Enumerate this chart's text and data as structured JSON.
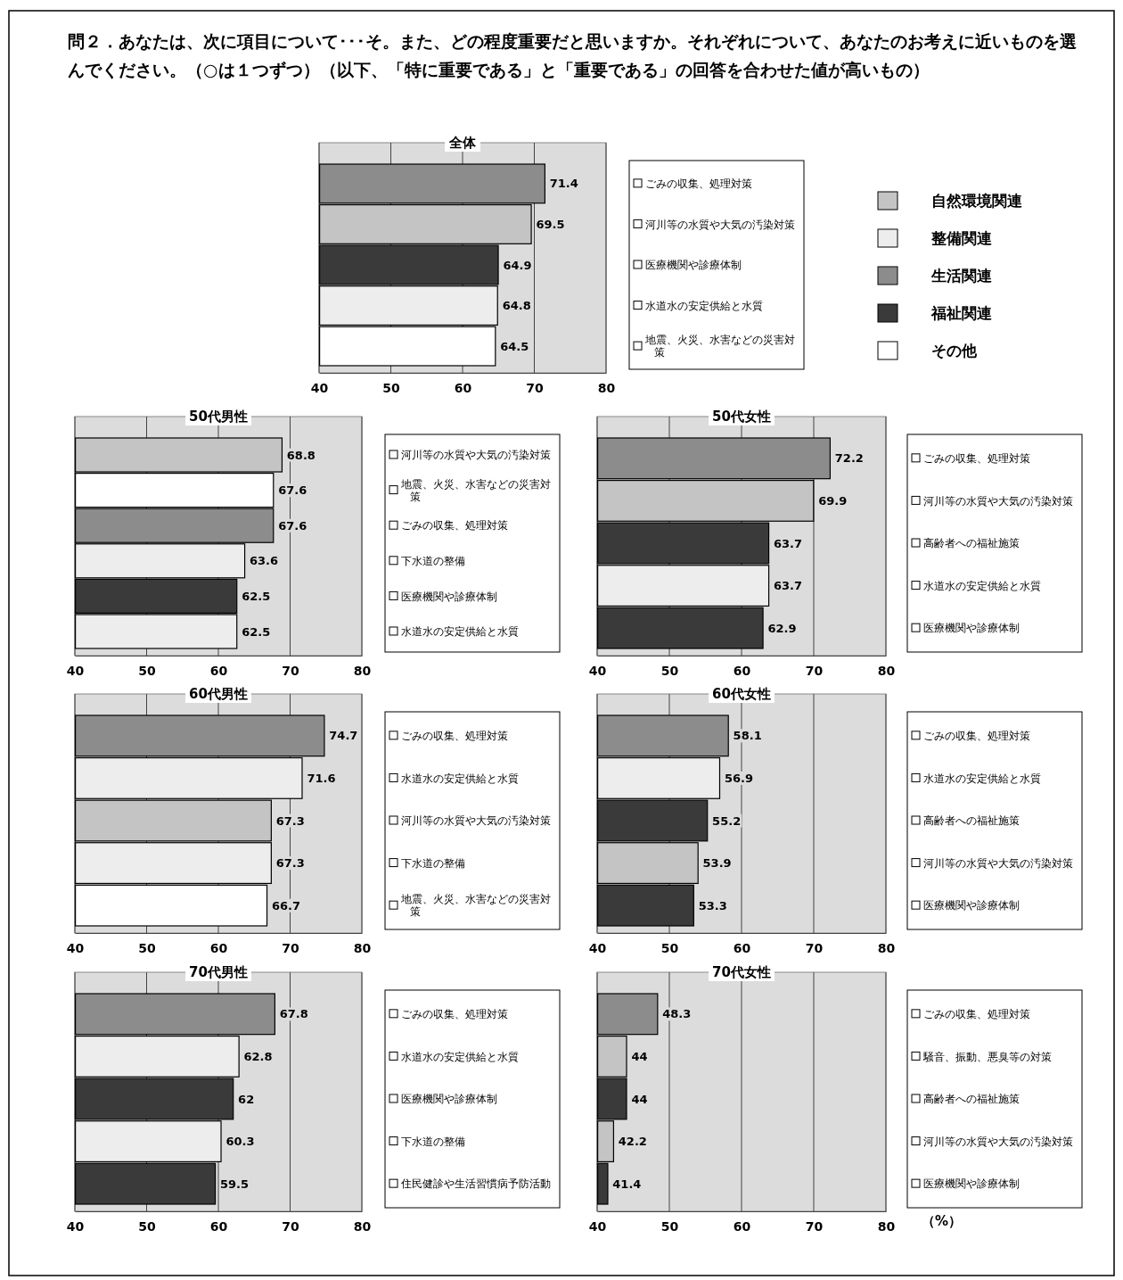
{
  "chart_data": [
    {
      "type": "bar",
      "orientation": "horizontal",
      "title": "全体",
      "annotations": [
        "問２．あなたは、次に項目について･･･そ。また、どの程度重要だと思いますか。それぞれについて、あなたのお考えに近いものを選んでください。（○は１つずつ）（以下、「特に重要である」と「重要である」の回答を合わせた値が高いもの）"
      ],
      "categories": [
        "ごみの収集、処理対策",
        "河川等の水質や大気の汚染対策",
        "医療機関や診療体制",
        "水道水の安定供給と水質",
        "地震、火災、水害などの災害対策"
      ],
      "series": [
        {
          "name": "自然環境関連",
          "color": "#c4c4c4",
          "values": [
            null,
            69.5,
            null,
            null,
            null
          ]
        },
        {
          "name": "整備関連",
          "color": "#ededed",
          "values": [
            null,
            null,
            null,
            64.8,
            null
          ]
        },
        {
          "name": "生活関連",
          "color": "#8c8c8c",
          "values": [
            71.4,
            null,
            null,
            null,
            null
          ]
        },
        {
          "name": "福祉関連",
          "color": "#3a3a3a",
          "values": [
            null,
            null,
            64.9,
            null,
            null
          ]
        },
        {
          "name": "その他",
          "color": "#ffffff",
          "values": [
            null,
            null,
            null,
            null,
            64.5
          ]
        }
      ],
      "xlim": [
        40,
        80
      ],
      "xticks": [
        40,
        50,
        60,
        70,
        80
      ],
      "grid": "x",
      "data_labels": true,
      "legend": "right"
    },
    {
      "type": "bar",
      "orientation": "horizontal",
      "title": "50代男性",
      "categories": [
        "河川等の水質や大気の汚染対策",
        "地震、火災、水害などの災害対策",
        "ごみの収集、処理対策",
        "下水道の整備",
        "医療機関や診療体制",
        "水道水の安定供給と水質"
      ],
      "values": [
        68.8,
        67.6,
        67.6,
        63.6,
        62.5,
        62.5
      ],
      "colors": [
        "#c4c4c4",
        "#ffffff",
        "#8c8c8c",
        "#ededed",
        "#3a3a3a",
        "#ededed"
      ],
      "xlim": [
        40,
        80
      ],
      "xticks": [
        40,
        50,
        60,
        70,
        80
      ],
      "grid": "x",
      "data_labels": true
    },
    {
      "type": "bar",
      "orientation": "horizontal",
      "title": "50代女性",
      "categories": [
        "ごみの収集、処理対策",
        "河川等の水質や大気の汚染対策",
        "高齢者への福祉施策",
        "水道水の安定供給と水質",
        "医療機関や診療体制"
      ],
      "values": [
        72.2,
        69.9,
        63.7,
        63.7,
        62.9
      ],
      "colors": [
        "#8c8c8c",
        "#c4c4c4",
        "#3a3a3a",
        "#ededed",
        "#3a3a3a"
      ],
      "xlim": [
        40,
        80
      ],
      "xticks": [
        40,
        50,
        60,
        70,
        80
      ],
      "grid": "x",
      "data_labels": true
    },
    {
      "type": "bar",
      "orientation": "horizontal",
      "title": "60代男性",
      "categories": [
        "ごみの収集、処理対策",
        "水道水の安定供給と水質",
        "河川等の水質や大気の汚染対策",
        "下水道の整備",
        "地震、火災、水害などの災害対策"
      ],
      "values": [
        74.7,
        71.6,
        67.3,
        67.3,
        66.7
      ],
      "colors": [
        "#8c8c8c",
        "#ededed",
        "#c4c4c4",
        "#ededed",
        "#ffffff"
      ],
      "xlim": [
        40,
        80
      ],
      "xticks": [
        40,
        50,
        60,
        70,
        80
      ],
      "grid": "x",
      "data_labels": true
    },
    {
      "type": "bar",
      "orientation": "horizontal",
      "title": "60代女性",
      "categories": [
        "ごみの収集、処理対策",
        "水道水の安定供給と水質",
        "高齢者への福祉施策",
        "河川等の水質や大気の汚染対策",
        "医療機関や診療体制"
      ],
      "values": [
        58.1,
        56.9,
        55.2,
        53.9,
        53.3
      ],
      "colors": [
        "#8c8c8c",
        "#ededed",
        "#3a3a3a",
        "#c4c4c4",
        "#3a3a3a"
      ],
      "xlim": [
        40,
        80
      ],
      "xticks": [
        40,
        50,
        60,
        70,
        80
      ],
      "grid": "x",
      "data_labels": true
    },
    {
      "type": "bar",
      "orientation": "horizontal",
      "title": "70代男性",
      "categories": [
        "ごみの収集、処理対策",
        "水道水の安定供給と水質",
        "医療機関や診療体制",
        "下水道の整備",
        "住民健診や生活習慣病予防活動"
      ],
      "values": [
        67.8,
        62.8,
        62,
        60.3,
        59.5
      ],
      "colors": [
        "#8c8c8c",
        "#ededed",
        "#3a3a3a",
        "#ededed",
        "#3a3a3a"
      ],
      "xlim": [
        40,
        80
      ],
      "xticks": [
        40,
        50,
        60,
        70,
        80
      ],
      "grid": "x",
      "data_labels": true
    },
    {
      "type": "bar",
      "orientation": "horizontal",
      "title": "70代女性",
      "annotations": [
        "（%）"
      ],
      "categories": [
        "ごみの収集、処理対策",
        "騒音、振動、悪臭等の対策",
        "高齢者への福祉施策",
        "河川等の水質や大気の汚染対策",
        "医療機関や診療体制"
      ],
      "values": [
        48.3,
        44,
        44,
        42.2,
        41.4
      ],
      "colors": [
        "#8c8c8c",
        "#c4c4c4",
        "#3a3a3a",
        "#c4c4c4",
        "#3a3a3a"
      ],
      "xlim": [
        40,
        80
      ],
      "xticks": [
        40,
        50,
        60,
        70,
        80
      ],
      "grid": "x",
      "data_labels": true
    }
  ]
}
